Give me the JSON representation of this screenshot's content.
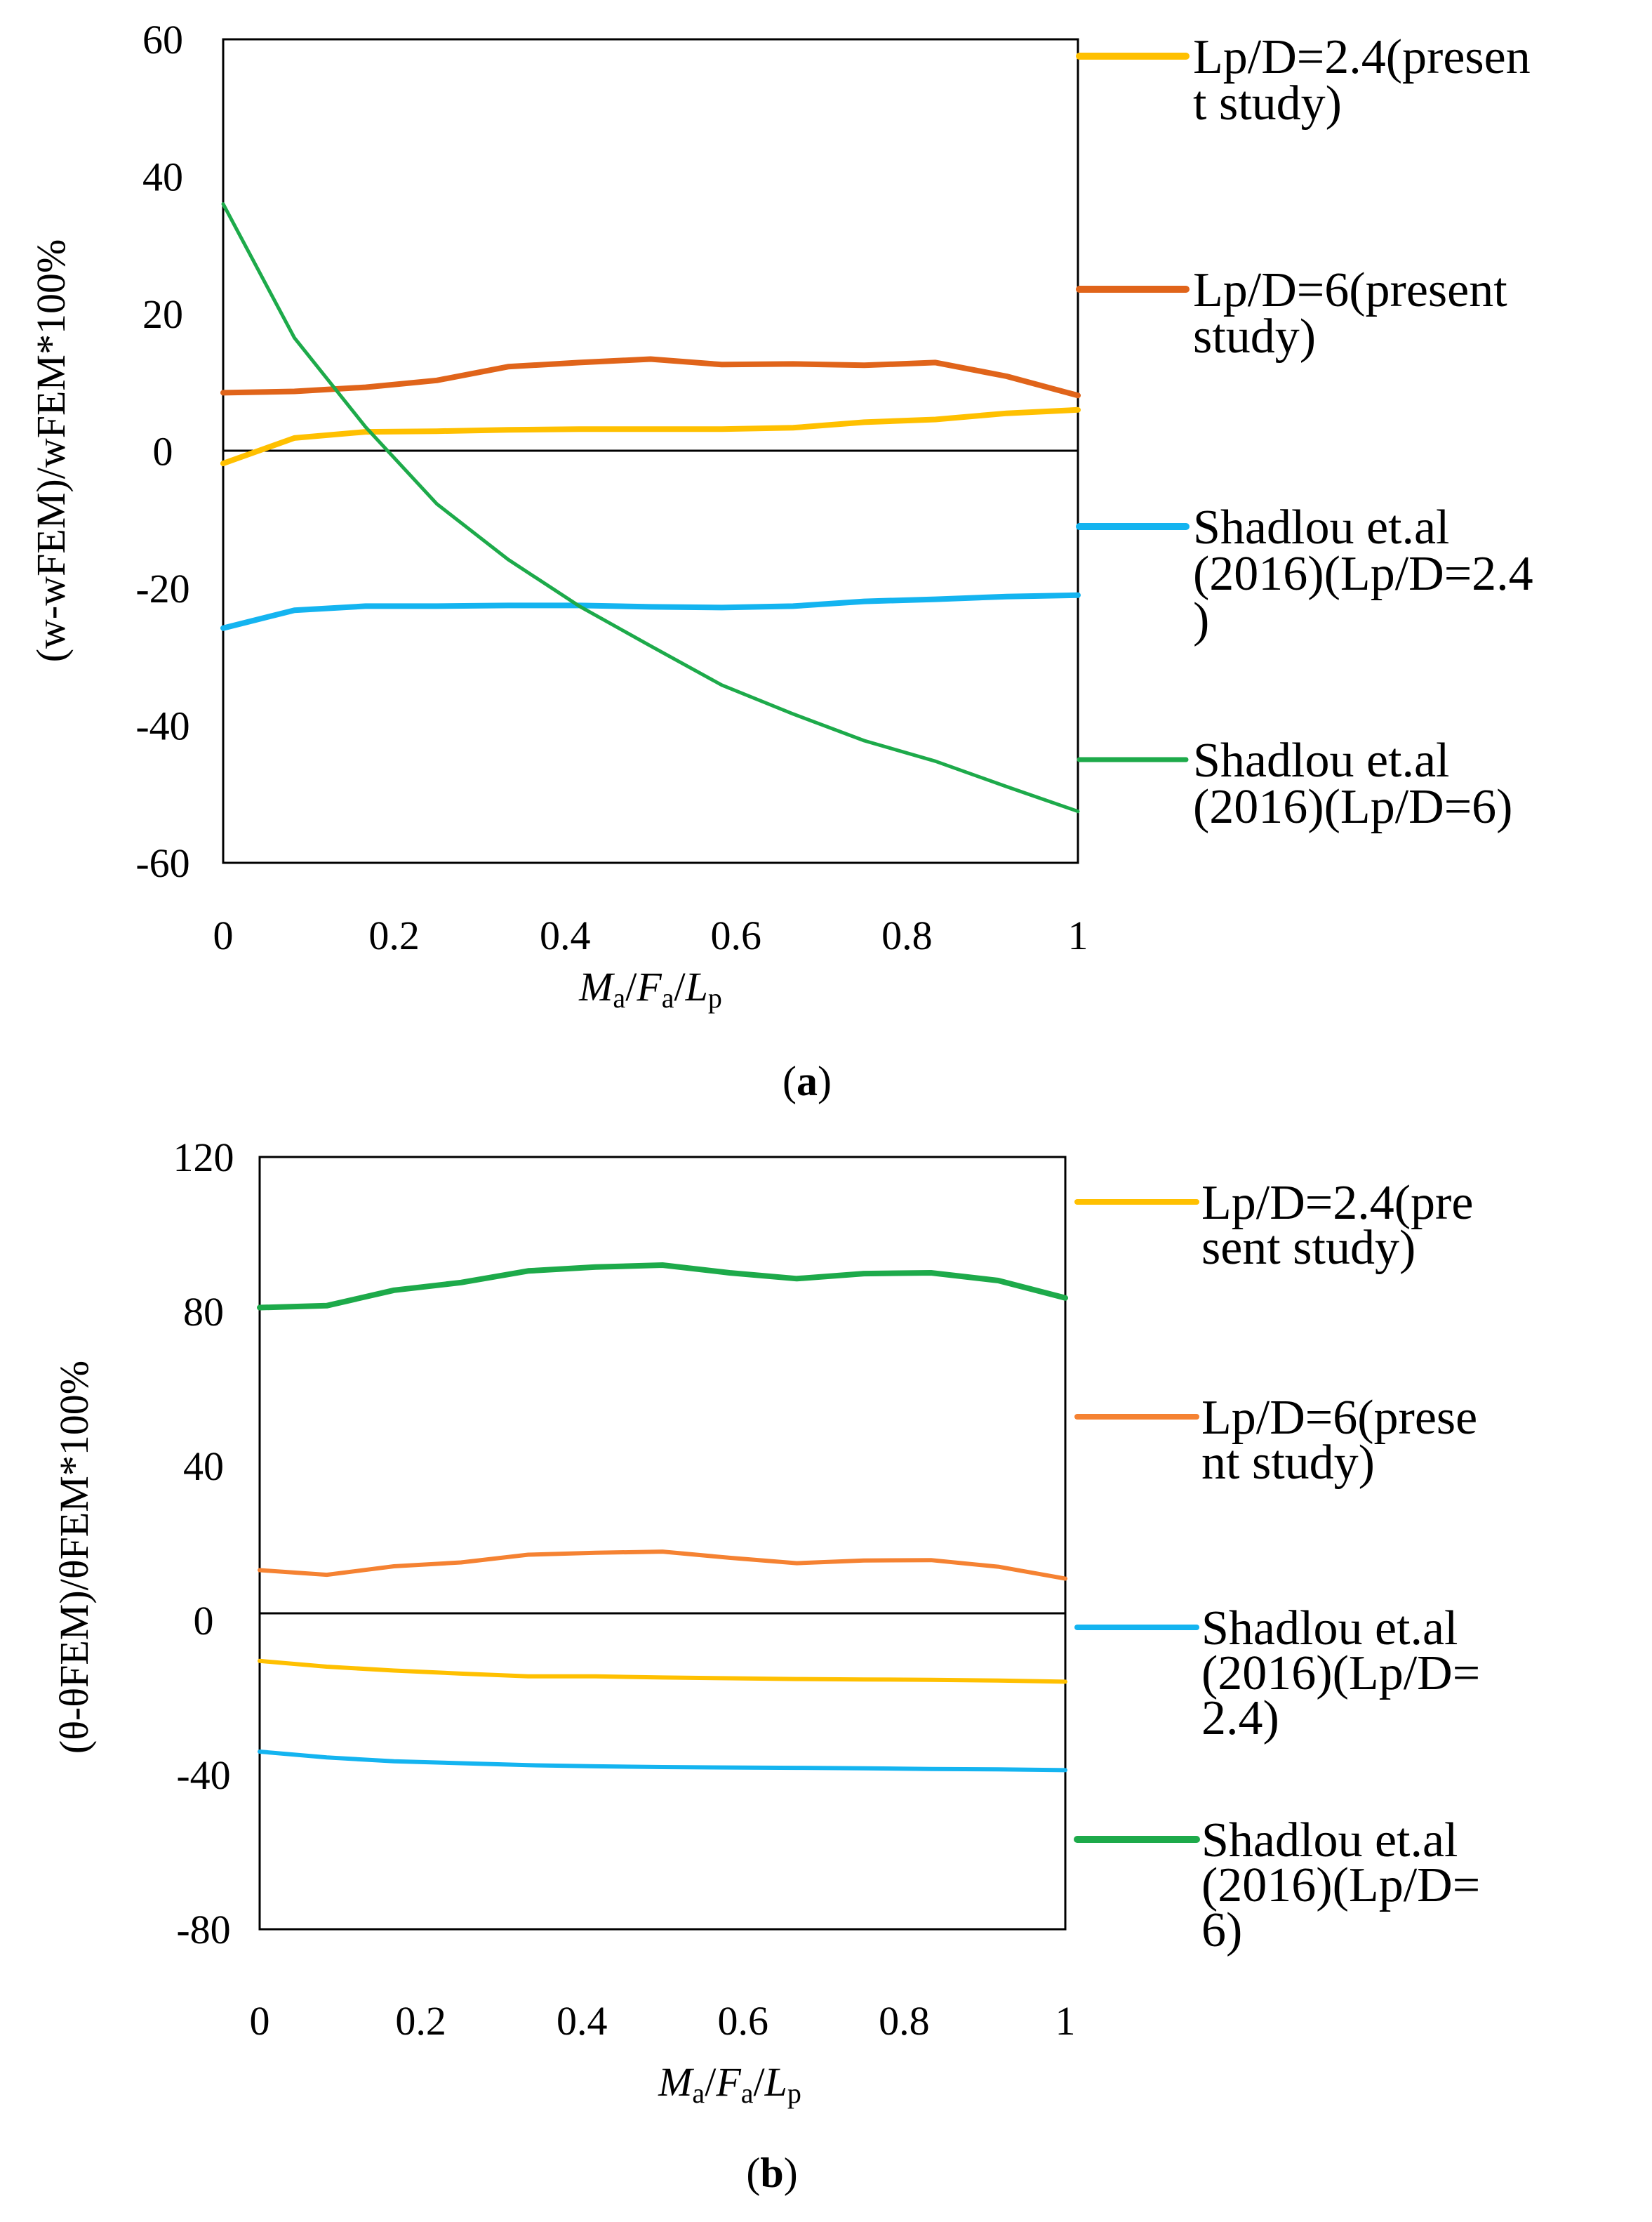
{
  "chart_data": [
    {
      "type": "line",
      "panel_label": "a",
      "ylabel": "(w-wFEM)/wFEM*100%",
      "xlabel": {
        "M": "M",
        "M_sub": "a",
        "slash1": "/",
        "F": "F",
        "F_sub": "a",
        "slash2": "/",
        "L": "L",
        "L_sub": "p"
      },
      "xlim": [
        0,
        1
      ],
      "ylim": [
        -60,
        60
      ],
      "x_ticks": [
        "0",
        "0.2",
        "0.4",
        "0.6",
        "0.8",
        "1"
      ],
      "y_ticks": [
        "60",
        "40",
        "20",
        "0",
        "-20",
        "-40",
        "-60"
      ],
      "x": [
        0,
        0.0833,
        0.1667,
        0.25,
        0.3333,
        0.4167,
        0.5,
        0.5833,
        0.6667,
        0.75,
        0.8333,
        0.9167,
        1
      ],
      "series": [
        {
          "name": "Lp/D=2.4(present study)",
          "legend_lines": [
            "Lp/D=2.4(presen",
            "t study)"
          ],
          "color": "#FFC000",
          "values": [
            -1.8,
            1.9,
            2.8,
            2.9,
            3.1,
            3.2,
            3.2,
            3.2,
            3.4,
            4.2,
            4.6,
            5.5,
            6.0
          ]
        },
        {
          "name": "Lp/D=6(present study)",
          "legend_lines": [
            "Lp/D=6(present",
            "study)"
          ],
          "color": "#E0641A",
          "values": [
            8.5,
            8.7,
            9.3,
            10.3,
            12.3,
            12.9,
            13.4,
            12.6,
            12.7,
            12.5,
            12.9,
            10.9,
            8.1
          ]
        },
        {
          "name": "Shadlou et.al (2016)(Lp/D=2.4)",
          "legend_lines": [
            "Shadlou et.al",
            "(2016)(Lp/D=2.4",
            ")"
          ],
          "color": "#14B4F0",
          "values": [
            -25.8,
            -23.2,
            -22.6,
            -22.6,
            -22.5,
            -22.5,
            -22.7,
            -22.8,
            -22.6,
            -21.9,
            -21.6,
            -21.2,
            -21.0
          ]
        },
        {
          "name": "Shadlou et.al (2016)(Lp/D=6)",
          "legend_lines": [
            "Shadlou et.al",
            "(2016)(Lp/D=6)"
          ],
          "color": "#1DAA4A",
          "values": [
            36.0,
            16.5,
            3.5,
            -7.7,
            -15.8,
            -22.6,
            -28.4,
            -34.1,
            -38.3,
            -42.2,
            -45.2,
            -48.9,
            -52.5
          ]
        }
      ]
    },
    {
      "type": "line",
      "panel_label": "b",
      "ylabel": "(θ-θFEM)/θFEM*100%",
      "xlabel": {
        "M": "M",
        "M_sub": "a",
        "slash1": "/",
        "F": "F",
        "F_sub": "a",
        "slash2": "/",
        "L": "L",
        "L_sub": "p"
      },
      "xlim": [
        0,
        1
      ],
      "ylim": [
        -80,
        120
      ],
      "x_ticks": [
        "0",
        "0.2",
        "0.4",
        "0.6",
        "0.8",
        "1"
      ],
      "y_ticks": [
        "120",
        "80",
        "40",
        "0",
        "-40",
        "-80"
      ],
      "x": [
        0,
        0.0833,
        0.1667,
        0.25,
        0.3333,
        0.4167,
        0.5,
        0.5833,
        0.6667,
        0.75,
        0.8333,
        0.9167,
        1
      ],
      "series": [
        {
          "name": "Lp/D=2.4(present study)",
          "legend_lines": [
            "Lp/D=2.4(pre",
            "sent study)"
          ],
          "color": "#FFC000",
          "values": [
            -10.5,
            -12.0,
            -13.0,
            -13.8,
            -14.5,
            -14.5,
            -14.8,
            -15.0,
            -15.2,
            -15.3,
            -15.4,
            -15.6,
            -15.9
          ]
        },
        {
          "name": "Lp/D=6(present study)",
          "legend_lines": [
            "Lp/D=6(prese",
            "nt study)"
          ],
          "color": "#F58232",
          "values": [
            13.0,
            11.8,
            14.0,
            15.0,
            17.0,
            17.5,
            17.8,
            16.2,
            14.8,
            15.5,
            15.6,
            13.9,
            10.8
          ]
        },
        {
          "name": "Shadlou et.al (2016)(Lp/D=2.4)",
          "legend_lines": [
            "Shadlou et.al",
            "(2016)(Lp/D=",
            "2.4)"
          ],
          "color": "#14B4F0",
          "values": [
            -34.0,
            -35.5,
            -36.5,
            -37.0,
            -37.5,
            -37.8,
            -38.0,
            -38.1,
            -38.2,
            -38.3,
            -38.5,
            -38.6,
            -38.8
          ]
        },
        {
          "name": "Shadlou et.al (2016)(Lp/D=6)",
          "legend_lines": [
            "Shadlou et.al",
            "(2016)(Lp/D=",
            "6)"
          ],
          "color": "#1DAA4A",
          "values": [
            81.0,
            81.5,
            85.5,
            87.5,
            90.5,
            91.5,
            92.0,
            90.0,
            88.5,
            89.8,
            90.0,
            88.0,
            83.5
          ]
        }
      ]
    }
  ]
}
